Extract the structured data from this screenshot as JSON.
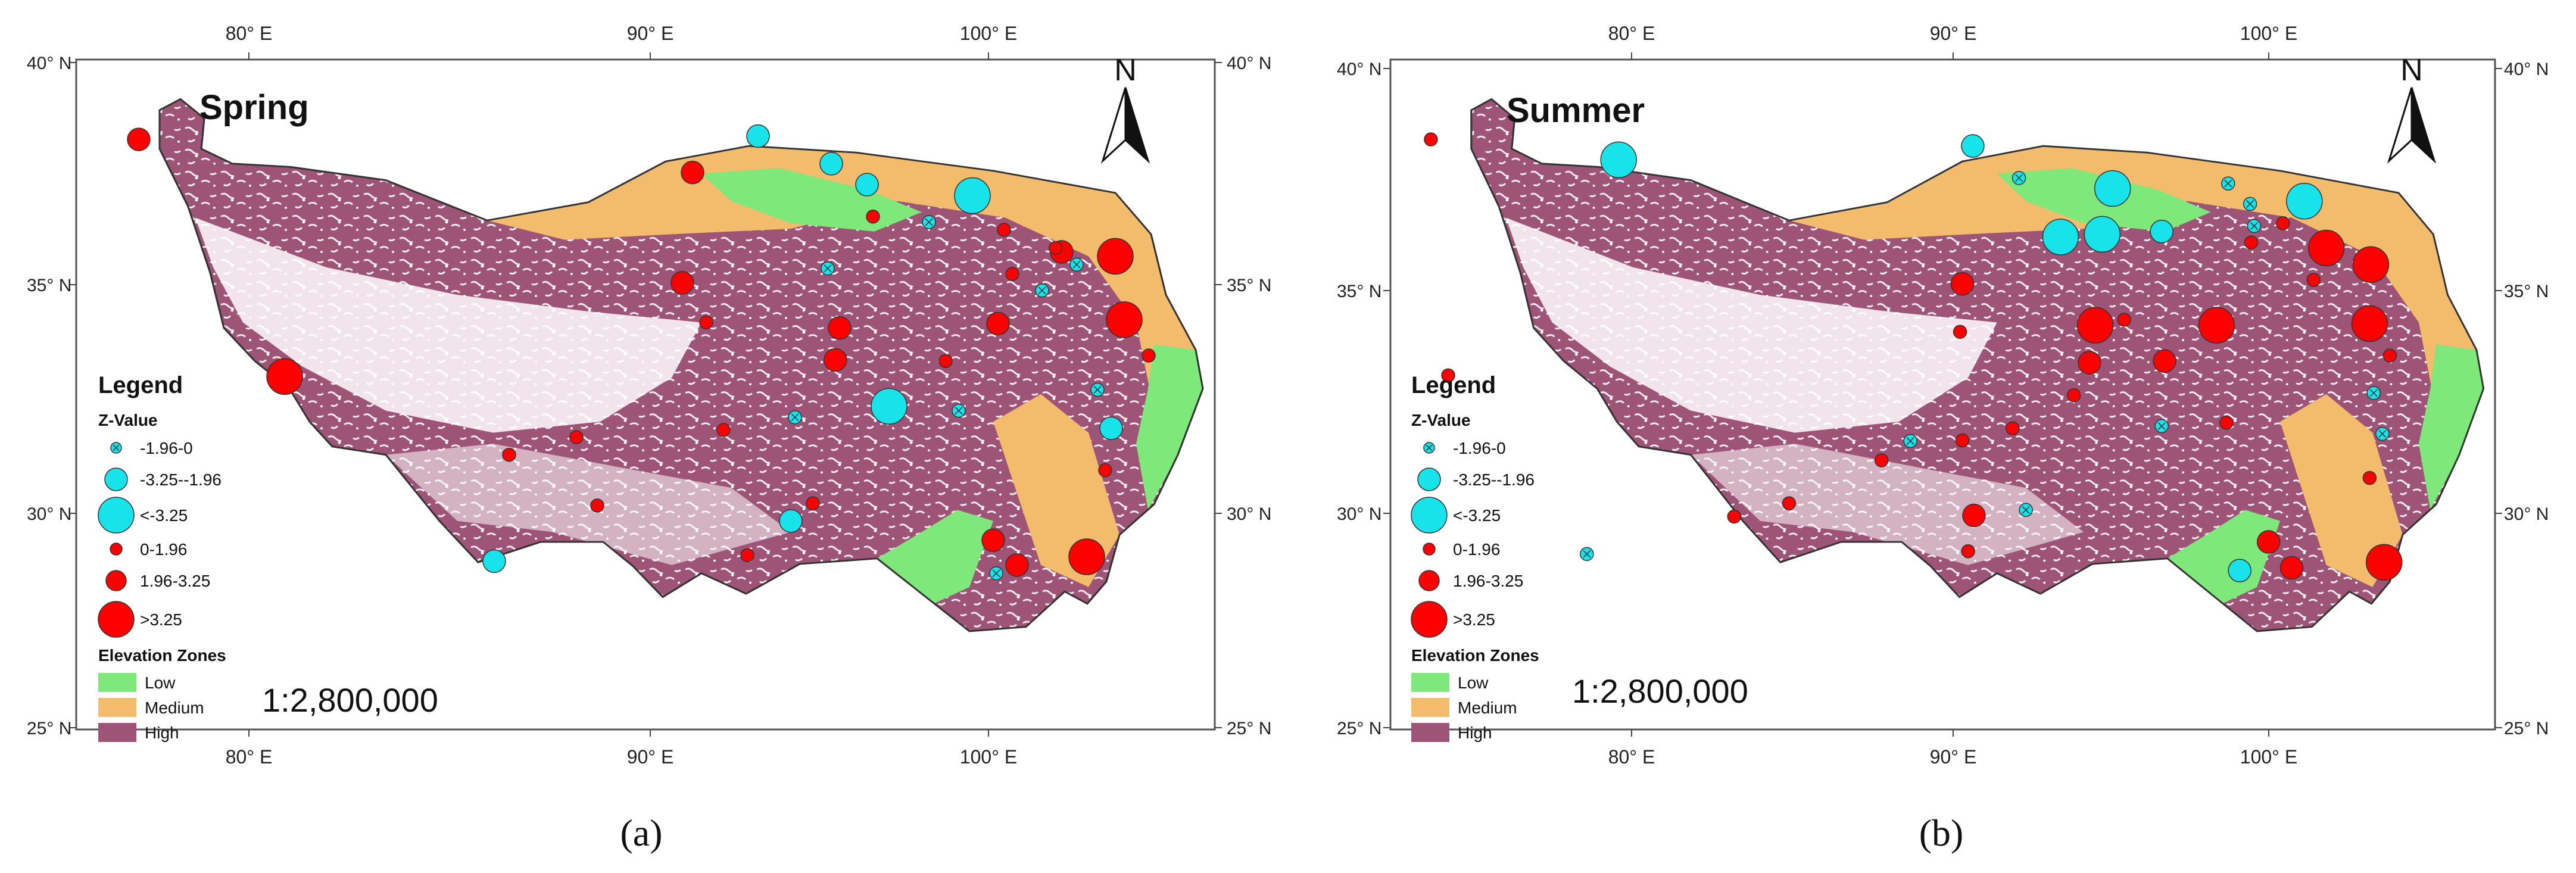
{
  "panels": [
    {
      "id": "a",
      "title": "Spring",
      "caption": "(a)",
      "legend": {
        "heading": "Legend",
        "zvalue_title": "Z-Value",
        "z_items": [
          "-1.96-0",
          "-3.25--1.96",
          "<-3.25",
          "0-1.96",
          "1.96-3.25",
          ">3.25"
        ],
        "elevation_title": "Elevation Zones",
        "elevation_items": [
          "Low",
          "Medium",
          "High"
        ]
      },
      "scale": "1:2,800,000",
      "north": "N",
      "x_ticks": [
        "80° E",
        "90° E",
        "100° E"
      ],
      "y_ticks_left": [
        "40° N",
        "35° N",
        "30° N",
        "25° N"
      ],
      "y_ticks_right": [
        "40° N",
        "35° N",
        "30° N",
        "25° N"
      ]
    },
    {
      "id": "b",
      "title": "Summer",
      "caption": "(b)",
      "legend": {
        "heading": "Legend",
        "zvalue_title": "Z-Value",
        "z_items": [
          "-1.96-0",
          "-3.25--1.96",
          "<-3.25",
          "0-1.96",
          "1.96-3.25",
          ">3.25"
        ],
        "elevation_title": "Elevation Zones",
        "elevation_items": [
          "Low",
          "Medium",
          "High"
        ]
      },
      "scale": "1:2,800,000",
      "north": "N",
      "x_ticks": [
        "80° E",
        "90° E",
        "100° E"
      ],
      "y_ticks_left": [
        "40° N",
        "35° N",
        "30° N",
        "25° N"
      ],
      "y_ticks_right": [
        "40° N",
        "35° N",
        "30° N",
        "25° N"
      ]
    }
  ],
  "colors": {
    "low": "#7ee87a",
    "medium": "#f3bc6c",
    "high": "#9e5477",
    "positive": "#ff0000",
    "negative": "#19e3ea"
  }
}
